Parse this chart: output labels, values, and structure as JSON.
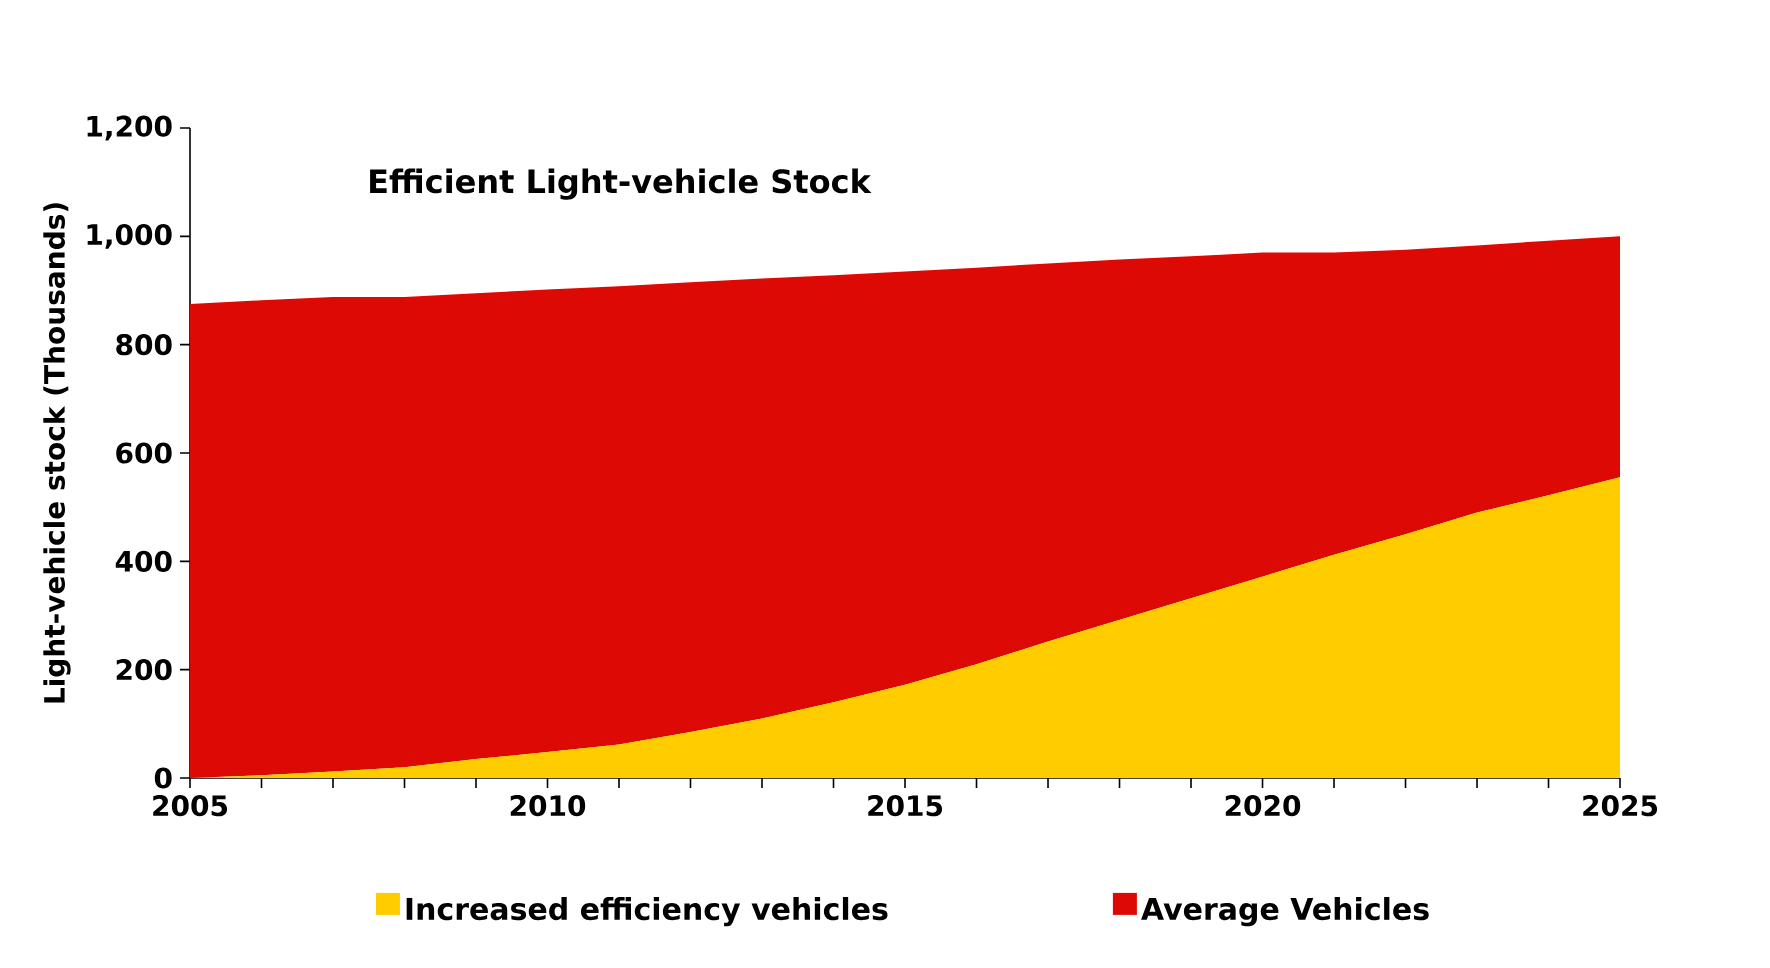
{
  "chart_data": {
    "type": "area",
    "title": "Efficient Light-vehicle Stock",
    "ylabel": "Light-vehicle stock (Thousands)",
    "stacked": true,
    "legend": "bottom",
    "x": [
      2005,
      2006,
      2007,
      2008,
      2009,
      2010,
      2011,
      2012,
      2013,
      2014,
      2015,
      2016,
      2017,
      2018,
      2019,
      2020,
      2021,
      2022,
      2023,
      2024,
      2025
    ],
    "series": [
      {
        "name": "Increased efficiency vehicles",
        "color": "#ffcc00",
        "values": [
          0,
          5,
          12,
          20,
          35,
          48,
          62,
          85,
          110,
          140,
          172,
          210,
          252,
          292,
          332,
          372,
          412,
          450,
          490,
          522,
          555
        ]
      },
      {
        "name": "Average Vehicles",
        "color": "#dd0905",
        "values": [
          875,
          877,
          876,
          868,
          860,
          854,
          846,
          830,
          812,
          788,
          763,
          732,
          698,
          665,
          631,
          598,
          558,
          525,
          493,
          470,
          445
        ]
      }
    ],
    "xlim": [
      2005,
      2025
    ],
    "xticks": [
      2005,
      2010,
      2015,
      2020,
      2025
    ],
    "ylim": [
      0,
      1200
    ],
    "yticks": [
      0,
      200,
      400,
      600,
      800,
      {
        "value": 1000,
        "label": "1,000"
      },
      {
        "value": 1200,
        "label": "1,200"
      }
    ]
  }
}
